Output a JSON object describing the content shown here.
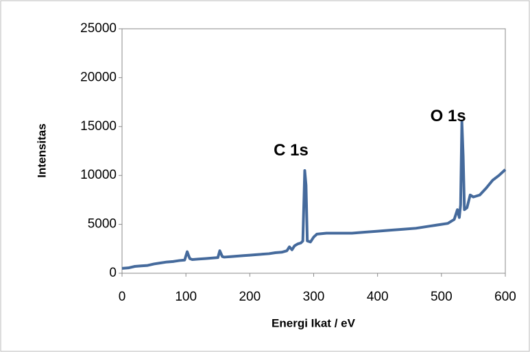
{
  "chart_data": {
    "type": "line",
    "x_label": "Energi Ikat / eV",
    "y_label": "Intensitas",
    "annotations": [
      {
        "text": "C 1s",
        "x": 286,
        "y": 12500
      },
      {
        "text": "O 1s",
        "x": 532,
        "y": 16000
      }
    ],
    "xlim": [
      0,
      600
    ],
    "xticks": [
      0,
      100,
      200,
      300,
      400,
      500,
      600
    ],
    "ylim": [
      0,
      25000
    ],
    "yticks": [
      0,
      5000,
      10000,
      15000,
      20000,
      25000
    ],
    "series": [
      {
        "color": "#456a9c",
        "x": [
          0,
          10,
          20,
          30,
          40,
          50,
          60,
          70,
          80,
          90,
          98,
          102,
          106,
          110,
          120,
          130,
          140,
          150,
          153,
          157,
          160,
          170,
          180,
          190,
          200,
          210,
          220,
          230,
          240,
          250,
          258,
          262,
          266,
          270,
          275,
          280,
          283,
          285,
          286,
          288,
          290,
          295,
          300,
          305,
          320,
          340,
          360,
          380,
          400,
          420,
          440,
          460,
          480,
          500,
          510,
          515,
          520,
          525,
          528,
          530,
          532,
          534,
          536,
          540,
          545,
          550,
          560,
          570,
          580,
          590,
          600
        ],
        "values": [
          500,
          550,
          700,
          750,
          800,
          950,
          1050,
          1150,
          1200,
          1300,
          1350,
          2200,
          1500,
          1400,
          1450,
          1500,
          1550,
          1600,
          2300,
          1700,
          1650,
          1700,
          1750,
          1800,
          1850,
          1900,
          1950,
          2000,
          2100,
          2150,
          2300,
          2700,
          2400,
          2800,
          3000,
          3100,
          3300,
          8000,
          10500,
          9000,
          3300,
          3200,
          3700,
          4000,
          4100,
          4100,
          4100,
          4200,
          4300,
          4400,
          4500,
          4600,
          4800,
          5000,
          5100,
          5300,
          5500,
          6500,
          5700,
          7000,
          15500,
          12000,
          6500,
          6700,
          8000,
          7800,
          8000,
          8700,
          9500,
          10000,
          10600
        ]
      }
    ]
  }
}
